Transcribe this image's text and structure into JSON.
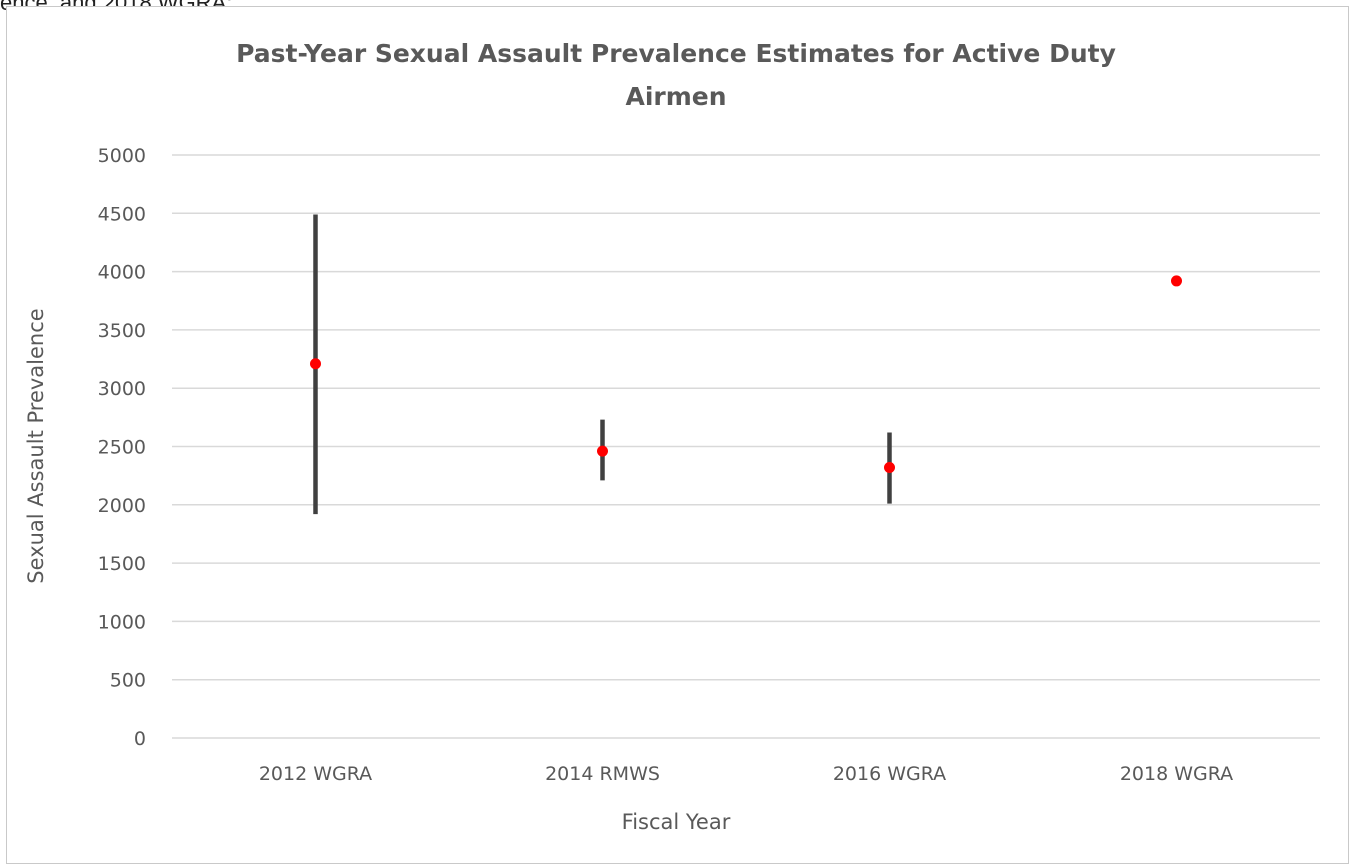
{
  "page_header_fragment": "ence, and 2018 WGRA;",
  "chart_data": {
    "type": "scatter",
    "title_lines": [
      "Past-Year Sexual Assault Prevalence Estimates for Active Duty",
      "Airmen"
    ],
    "xlabel": "Fiscal Year",
    "ylabel": "Sexual Assault Prevalence",
    "categories": [
      "2012 WGRA",
      "2014 RMWS",
      "2016 WGRA",
      "2018 WGRA"
    ],
    "ylim": [
      0,
      5000
    ],
    "yticks": [
      0,
      500,
      1000,
      1500,
      2000,
      2500,
      3000,
      3500,
      4000,
      4500,
      5000
    ],
    "series": [
      {
        "values": [
          3210,
          2460,
          2320,
          3920
        ],
        "error_low": [
          1920,
          2210,
          2010,
          null
        ],
        "error_high": [
          4490,
          2730,
          2620,
          null
        ]
      }
    ],
    "grid": true,
    "colors": {
      "point": "#ff0000",
      "error_bar": "#404040",
      "grid": "#d9d9d9",
      "text": "#595959"
    }
  }
}
